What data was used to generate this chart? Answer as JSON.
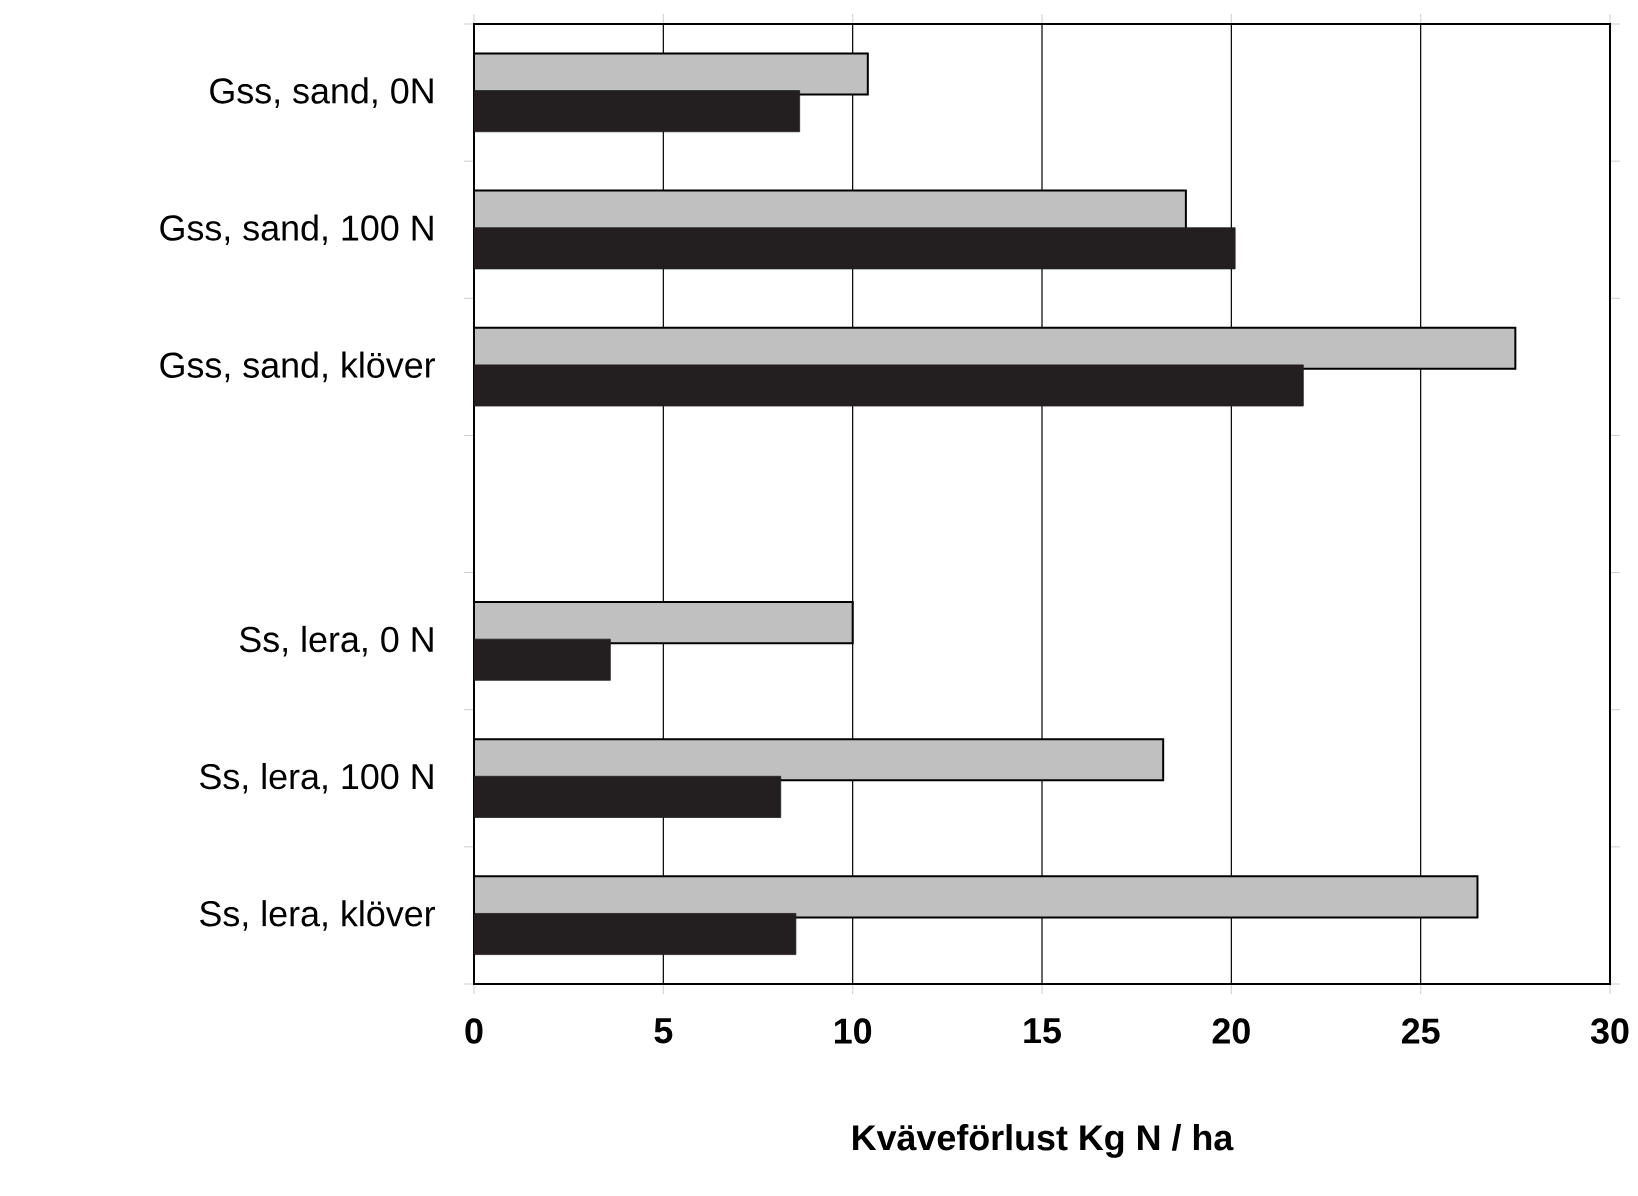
{
  "chart_data": {
    "type": "bar",
    "orientation": "horizontal",
    "xlabel": "Kväveförlust  Kg N / ha",
    "categories": [
      "Gss, sand, 0N",
      "Gss, sand, 100 N",
      "Gss, sand, klöver",
      null,
      "Ss, lera, 0 N",
      "Ss, lera, 100 N",
      "Ss, lera, klöver"
    ],
    "series": [
      {
        "color": "#c0c0c0",
        "values": [
          10.4,
          18.8,
          27.5,
          null,
          10.0,
          18.2,
          26.5
        ]
      },
      {
        "color": "#231f20",
        "values": [
          8.6,
          20.1,
          21.9,
          null,
          3.6,
          8.1,
          8.5
        ]
      }
    ],
    "xlim": [
      0,
      30
    ],
    "xticks": [
      0,
      5,
      10,
      15,
      20,
      25,
      30
    ],
    "grid": "x"
  }
}
